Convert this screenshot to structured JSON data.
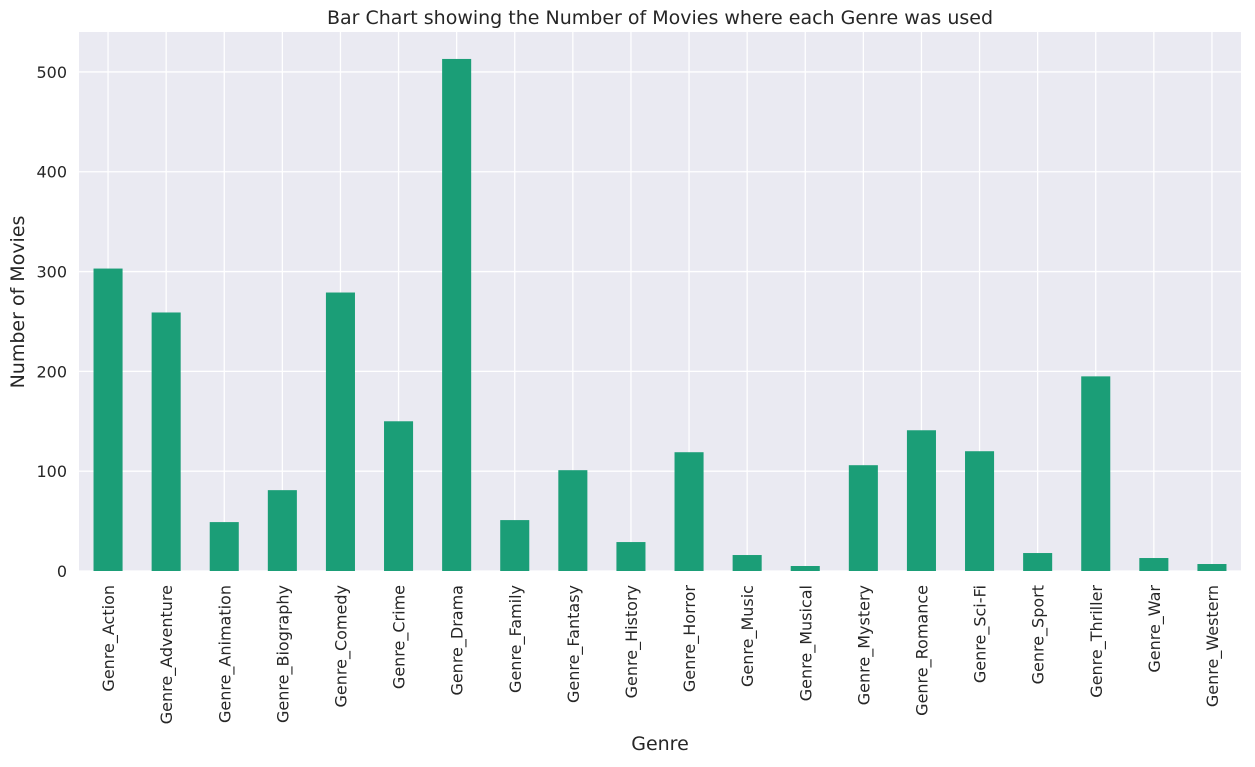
{
  "chart_data": {
    "type": "bar",
    "title": "Bar Chart showing the Number of Movies where each Genre was used",
    "xlabel": "Genre",
    "ylabel": "Number of Movies",
    "categories": [
      "Genre_Action",
      "Genre_Adventure",
      "Genre_Animation",
      "Genre_Biography",
      "Genre_Comedy",
      "Genre_Crime",
      "Genre_Drama",
      "Genre_Family",
      "Genre_Fantasy",
      "Genre_History",
      "Genre_Horror",
      "Genre_Music",
      "Genre_Musical",
      "Genre_Mystery",
      "Genre_Romance",
      "Genre_Sci-Fi",
      "Genre_Sport",
      "Genre_Thriller",
      "Genre_War",
      "Genre_Western"
    ],
    "values": [
      303,
      259,
      49,
      81,
      279,
      150,
      513,
      51,
      101,
      29,
      119,
      16,
      5,
      106,
      141,
      120,
      18,
      195,
      13,
      7
    ],
    "ylim": [
      0,
      540
    ],
    "yticks": [
      "0",
      "100",
      "200",
      "300",
      "400",
      "500"
    ],
    "ytick_values": [
      0,
      100,
      200,
      300,
      400,
      500
    ],
    "grid": true,
    "colors": {
      "bar": "#1b9e77",
      "plot_background": "#eaeaf2",
      "grid": "#ffffff"
    }
  }
}
